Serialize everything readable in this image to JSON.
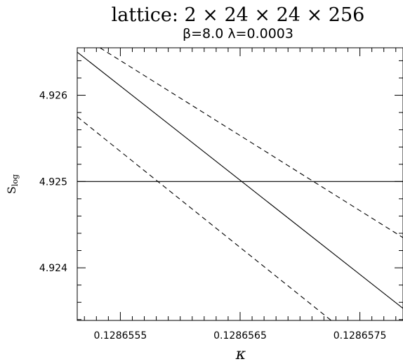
{
  "chart_data": {
    "type": "line",
    "title": "lattice: 2 × 24 × 24 × 256",
    "subtitle": "β=8.0   λ=0.0003",
    "xlabel": "κ",
    "ylabel": "S",
    "ylabel_subscript": "log",
    "xlim": [
      0.12865514,
      0.12865786
    ],
    "ylim": [
      4.92339,
      4.92655
    ],
    "x_ticks": [
      0.1286555,
      0.1286565,
      0.1286575
    ],
    "x_tick_labels": [
      "0.1286555",
      "0.1286565",
      "0.1286575"
    ],
    "y_ticks": [
      4.924,
      4.925,
      4.926
    ],
    "y_tick_labels": [
      "4.924",
      "4.925",
      "4.926"
    ],
    "grid": false,
    "series": [
      {
        "style": "solid",
        "x": [
          0.12865514,
          0.12865786
        ],
        "y": [
          4.9265,
          4.92353
        ]
      },
      {
        "style": "dashed",
        "x": [
          0.12865533,
          0.12865786
        ],
        "y": [
          4.92655,
          4.92435
        ]
      },
      {
        "style": "dashed",
        "x": [
          0.12865514,
          0.12865726
        ],
        "y": [
          4.92575,
          4.92339
        ]
      },
      {
        "style": "solid",
        "x": [
          0.12865514,
          0.12865786
        ],
        "y": [
          4.925,
          4.925
        ]
      }
    ]
  }
}
